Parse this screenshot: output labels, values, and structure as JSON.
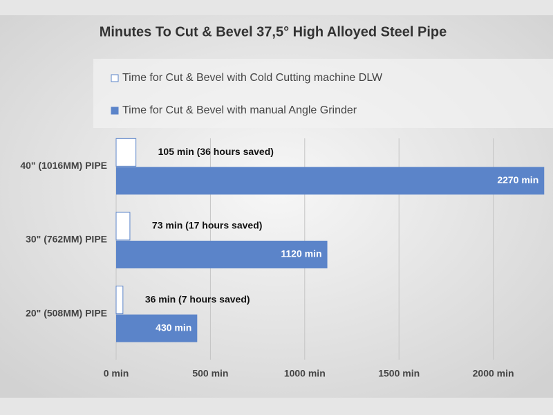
{
  "chart_data": {
    "type": "hbar",
    "title": "Minutes To Cut & Bevel 37,5° High Alloyed Steel Pipe",
    "categories": [
      "40\" (1016MM) PIPE",
      "30\" (762MM) PIPE",
      "20\" (508MM) PIPE"
    ],
    "series": [
      {
        "name": "Time for Cut & Bevel with Cold Cutting machine DLW",
        "color": "#ffffff",
        "values": [
          105,
          73,
          36
        ],
        "value_labels": [
          "105 min (36 hours saved)",
          "73 min (17 hours saved)",
          "36 min (7 hours saved)"
        ]
      },
      {
        "name": "Time for Cut & Bevel with manual Angle Grinder",
        "color": "#5b84c9",
        "values": [
          2270,
          1120,
          430
        ],
        "value_labels": [
          "2270 min",
          "1120 min",
          "430 min"
        ]
      }
    ],
    "xlim": [
      0,
      2280
    ],
    "xticks": [
      {
        "value": 0,
        "label": "0 min"
      },
      {
        "value": 500,
        "label": "500 min"
      },
      {
        "value": 1000,
        "label": "1000 min"
      },
      {
        "value": 1500,
        "label": "1500 min"
      },
      {
        "value": 2000,
        "label": "2000 min"
      }
    ],
    "grid": true,
    "legend": "top"
  }
}
